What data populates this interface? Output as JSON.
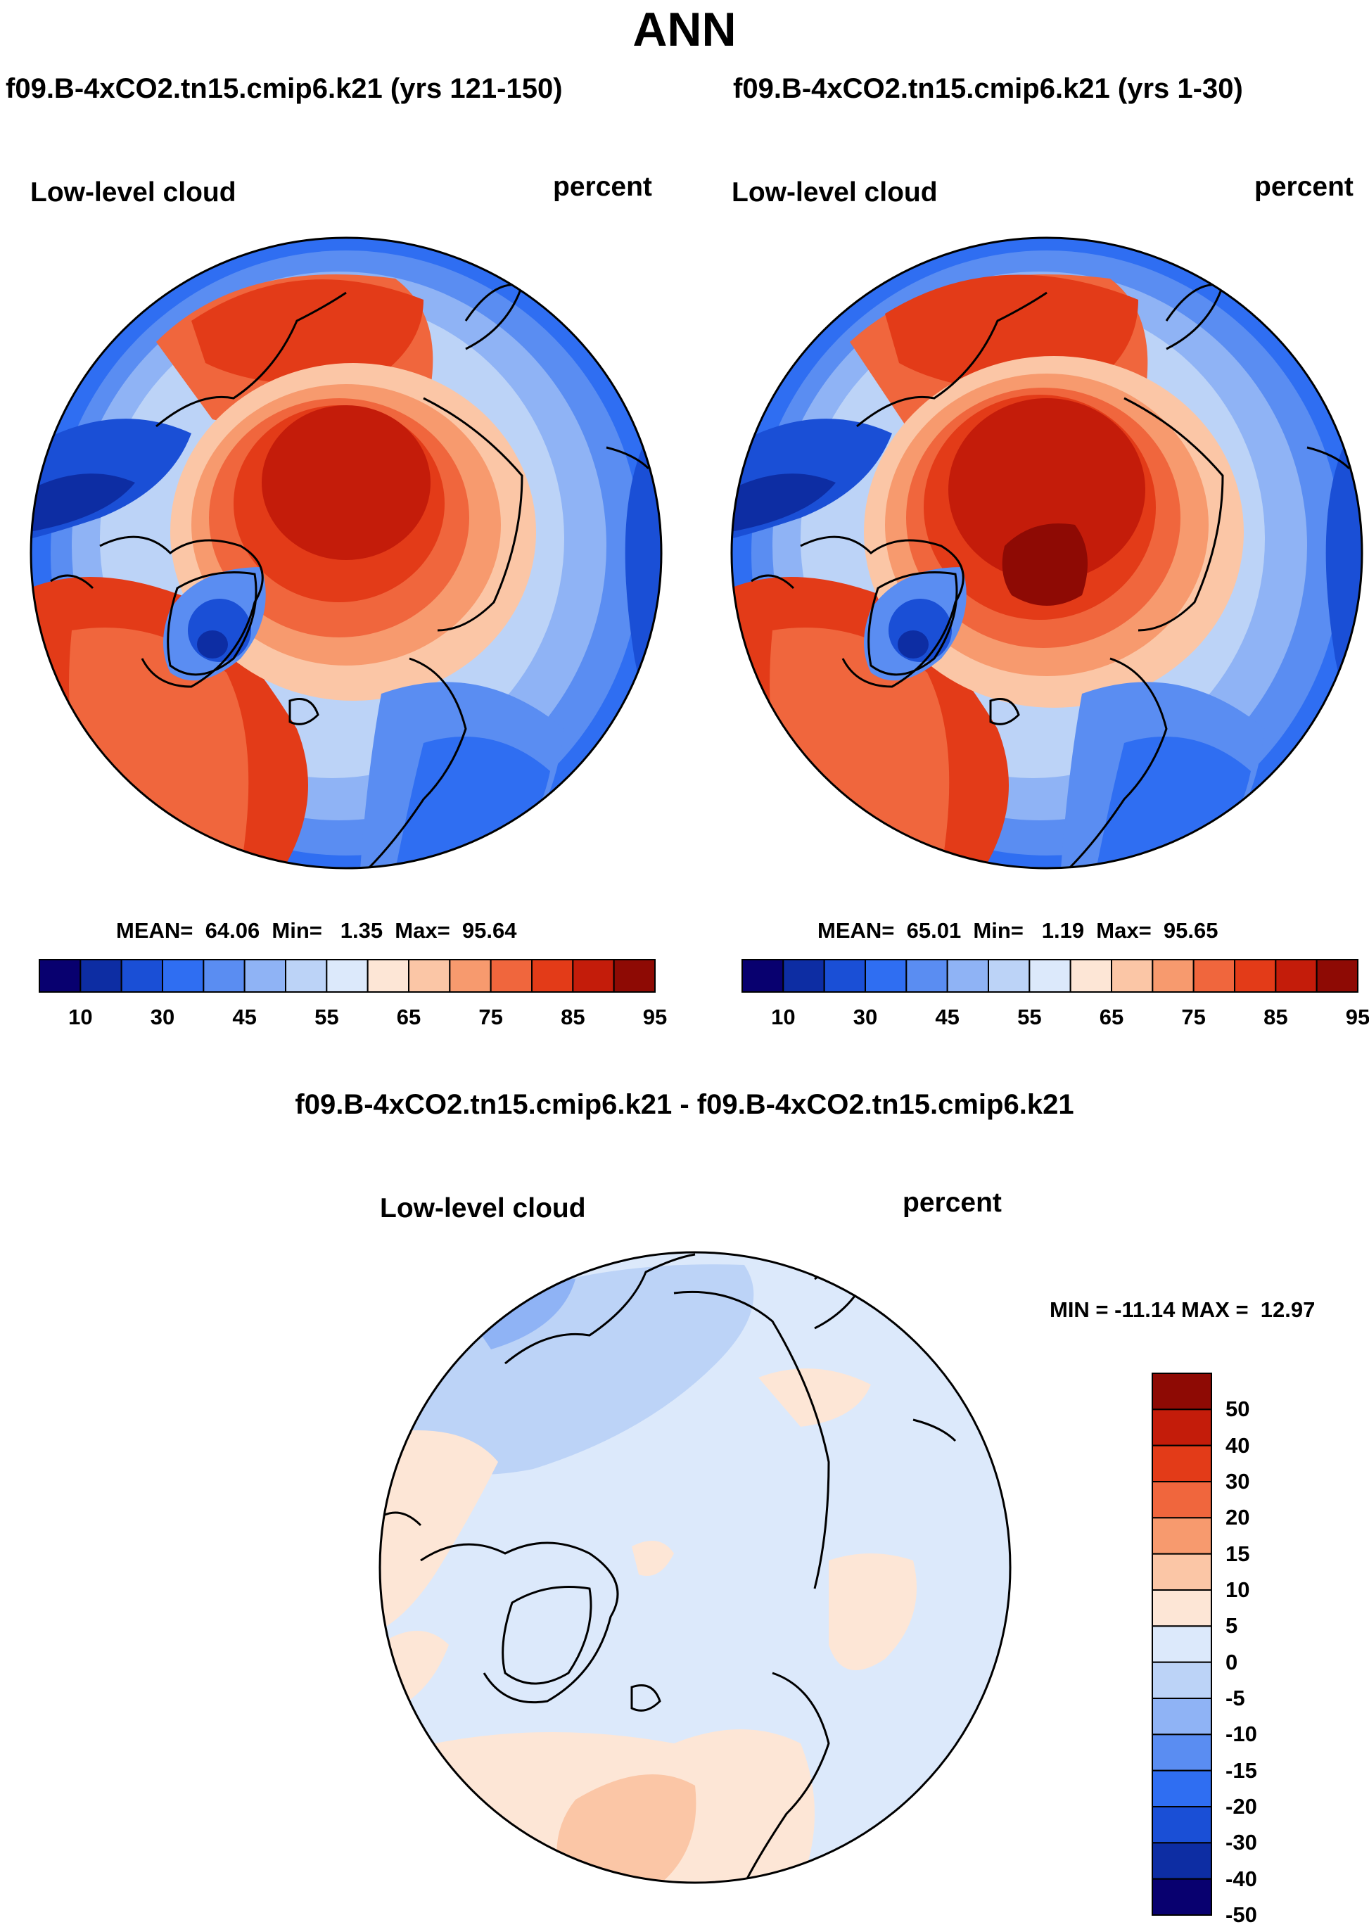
{
  "page_title": "ANN",
  "panels": [
    {
      "case_title": "f09.B-4xCO2.tn15.cmip6.k21 (yrs 121-150)",
      "variable": "Low-level cloud",
      "units": "percent",
      "stats_text": "MEAN=  64.06  Min=   1.35  Max=  95.64",
      "stats": {
        "mean": 64.06,
        "min": 1.35,
        "max": 95.64
      }
    },
    {
      "case_title": "f09.B-4xCO2.tn15.cmip6.k21 (yrs 1-30)",
      "variable": "Low-level cloud",
      "units": "percent",
      "stats_text": "MEAN=  65.01  Min=   1.19  Max=  95.65",
      "stats": {
        "mean": 65.01,
        "min": 1.19,
        "max": 95.65
      }
    }
  ],
  "diff_panel": {
    "case_title": "f09.B-4xCO2.tn15.cmip6.k21 - f09.B-4xCO2.tn15.cmip6.k21",
    "variable": "Low-level cloud",
    "units": "percent",
    "minmax_text": "MIN = -11.14 MAX =  12.97",
    "stats": {
      "min": -11.14,
      "max": 12.97
    }
  },
  "colorbar_abs": {
    "colors": [
      "#08006f",
      "#0d2da3",
      "#1a4fd6",
      "#2f6ef2",
      "#5a8df2",
      "#8fb3f5",
      "#bcd3f7",
      "#dce9fb",
      "#fde6d6",
      "#fbc6a6",
      "#f79a6e",
      "#f0663d",
      "#e33b18",
      "#c41c0a",
      "#8e0a04"
    ],
    "labels": [
      "10",
      "30",
      "45",
      "55",
      "65",
      "75",
      "85",
      "95"
    ]
  },
  "colorbar_diff": {
    "colors": [
      "#08006f",
      "#0d2da3",
      "#1a4fd6",
      "#2f6ef2",
      "#5a8df2",
      "#8fb3f5",
      "#bcd3f7",
      "#dce9fb",
      "#fde6d6",
      "#fbc6a6",
      "#f79a6e",
      "#f0663d",
      "#e33b18",
      "#c41c0a",
      "#8e0a04"
    ],
    "labels": [
      "50",
      "40",
      "30",
      "20",
      "15",
      "10",
      "5",
      "0",
      "-5",
      "-10",
      "-15",
      "-20",
      "-30",
      "-40",
      "-50"
    ]
  }
}
